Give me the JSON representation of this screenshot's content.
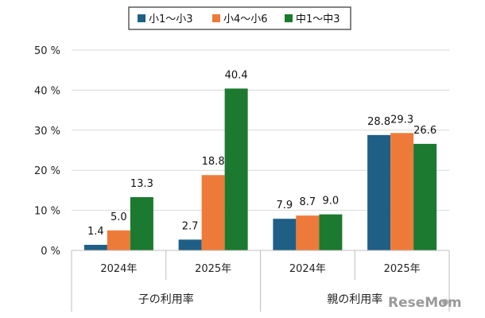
{
  "chart_data": {
    "type": "bar",
    "groups": [
      "子の利用率",
      "親の利用率"
    ],
    "categories": [
      "2024年",
      "2025年",
      "2024年",
      "2025年"
    ],
    "series": [
      {
        "name": "小1～小3",
        "color": "#1f5f86",
        "values": [
          1.4,
          2.7,
          7.9,
          28.8
        ]
      },
      {
        "name": "小4～小6",
        "color": "#ee7a3a",
        "values": [
          5.0,
          18.8,
          8.7,
          29.3
        ]
      },
      {
        "name": "中1～中3",
        "color": "#1b7a2f",
        "values": [
          13.3,
          40.4,
          9.0,
          26.6
        ]
      }
    ],
    "yticks": [
      "0 %",
      "10 %",
      "20 %",
      "30 %",
      "40 %",
      "50 %"
    ],
    "ylim": [
      0,
      50
    ],
    "legend": "top",
    "grid": true
  },
  "watermark": "ReseMom"
}
